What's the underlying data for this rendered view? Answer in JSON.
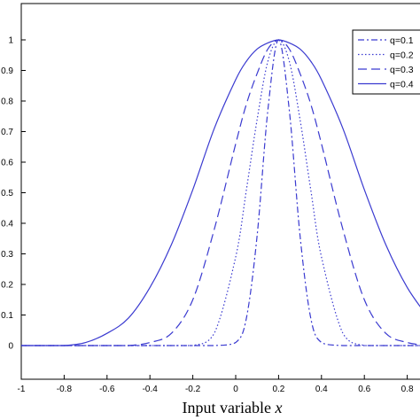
{
  "chart_data": {
    "type": "line",
    "title": "",
    "xlabel": "Input variable",
    "xlabel_var": "x",
    "ylabel": "",
    "xlim": [
      -1,
      1
    ],
    "ylim": [
      0,
      1
    ],
    "xticks": [
      "-1",
      "-0.8",
      "-0.6",
      "-0.4",
      "-0.2",
      "0",
      "0.2",
      "0.4",
      "0.6",
      "0.8"
    ],
    "yticks": [
      "0",
      "0.1",
      "0.2",
      "0.3",
      "0.4",
      "0.5",
      "0.6",
      "0.7",
      "0.8",
      "0.9",
      "1"
    ],
    "grid": false,
    "legend_position": "top-right",
    "line_color": "#3a3ad0",
    "x": [
      -1,
      -0.9,
      -0.8,
      -0.7,
      -0.6,
      -0.5,
      -0.4,
      -0.3,
      -0.2,
      -0.1,
      0,
      0.05,
      0.1,
      0.15,
      0.2,
      0.25,
      0.3,
      0.35,
      0.4,
      0.5,
      0.6,
      0.7,
      0.8,
      0.9
    ],
    "series": [
      {
        "name": "q=0.1",
        "dash": "dashdot",
        "values": [
          0,
          0,
          0,
          0,
          0,
          0,
          0,
          0,
          0,
          0,
          0.01,
          0.09,
          0.36,
          0.77,
          1,
          0.77,
          0.36,
          0.09,
          0.01,
          0,
          0,
          0,
          0,
          0
        ]
      },
      {
        "name": "q=0.2",
        "dash": "dotted",
        "values": [
          0,
          0,
          0,
          0,
          0,
          0,
          0,
          0,
          0,
          0.04,
          0.29,
          0.51,
          0.74,
          0.93,
          1,
          0.93,
          0.74,
          0.51,
          0.29,
          0.04,
          0,
          0,
          0,
          0
        ]
      },
      {
        "name": "q=0.3",
        "dash": "dashed",
        "values": [
          0,
          0,
          0,
          0,
          0,
          0,
          0.01,
          0.04,
          0.15,
          0.38,
          0.66,
          0.79,
          0.89,
          0.97,
          1,
          0.97,
          0.89,
          0.79,
          0.66,
          0.38,
          0.15,
          0.04,
          0.01,
          0
        ]
      },
      {
        "name": "q=0.4",
        "dash": "solid",
        "values": [
          0,
          0,
          0,
          0.01,
          0.04,
          0.09,
          0.19,
          0.33,
          0.51,
          0.71,
          0.87,
          0.93,
          0.97,
          0.99,
          1,
          0.99,
          0.97,
          0.93,
          0.87,
          0.71,
          0.51,
          0.33,
          0.19,
          0.09
        ]
      }
    ]
  }
}
